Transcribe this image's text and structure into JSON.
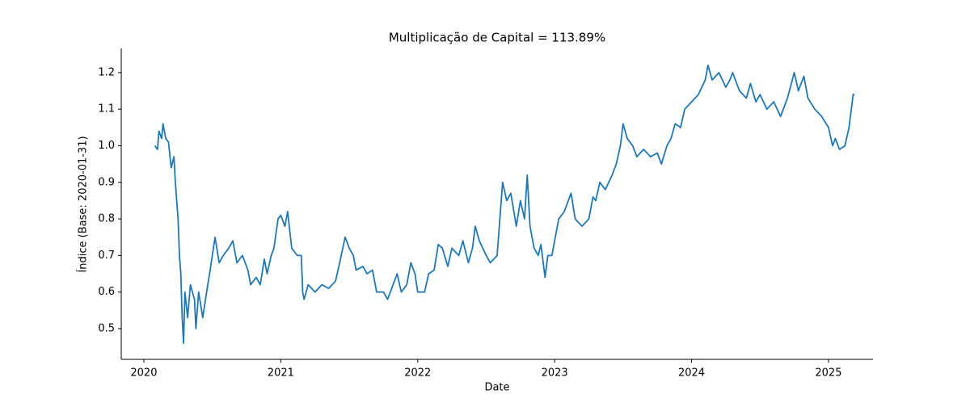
{
  "chart_data": {
    "type": "line",
    "title": "Multiplicação de Capital = 113.89%",
    "x_label": "Date",
    "y_label": "Índice (Base: 2020-01-31)",
    "x": [
      2020.08,
      2020.1,
      2020.11,
      2020.13,
      2020.14,
      2020.16,
      2020.18,
      2020.2,
      2020.22,
      2020.23,
      2020.25,
      2020.26,
      2020.27,
      2020.28,
      2020.29,
      2020.3,
      2020.32,
      2020.34,
      2020.37,
      2020.38,
      2020.4,
      2020.43,
      2020.45,
      2020.48,
      2020.5,
      2020.52,
      2020.55,
      2020.58,
      2020.62,
      2020.65,
      2020.68,
      2020.72,
      2020.76,
      2020.78,
      2020.82,
      2020.85,
      2020.88,
      2020.9,
      2020.93,
      2020.95,
      2020.98,
      2021.0,
      2021.03,
      2021.05,
      2021.08,
      2021.12,
      2021.15,
      2021.16,
      2021.17,
      2021.2,
      2021.25,
      2021.3,
      2021.35,
      2021.4,
      2021.43,
      2021.47,
      2021.5,
      2021.53,
      2021.55,
      2021.6,
      2021.63,
      2021.67,
      2021.7,
      2021.75,
      2021.78,
      2021.82,
      2021.85,
      2021.88,
      2021.92,
      2021.95,
      2021.98,
      2022.0,
      2022.05,
      2022.08,
      2022.12,
      2022.15,
      2022.18,
      2022.22,
      2022.25,
      2022.3,
      2022.33,
      2022.37,
      2022.4,
      2022.42,
      2022.45,
      2022.5,
      2022.53,
      2022.58,
      2022.6,
      2022.62,
      2022.65,
      2022.68,
      2022.72,
      2022.75,
      2022.78,
      2022.8,
      2022.82,
      2022.85,
      2022.88,
      2022.9,
      2022.93,
      2022.95,
      2022.98,
      2023.03,
      2023.07,
      2023.12,
      2023.15,
      2023.2,
      2023.25,
      2023.28,
      2023.3,
      2023.33,
      2023.37,
      2023.42,
      2023.45,
      2023.48,
      2023.5,
      2023.53,
      2023.57,
      2023.6,
      2023.65,
      2023.7,
      2023.75,
      2023.78,
      2023.82,
      2023.85,
      2023.88,
      2023.92,
      2023.95,
      2024.0,
      2024.05,
      2024.1,
      2024.12,
      2024.15,
      2024.2,
      2024.25,
      2024.28,
      2024.3,
      2024.35,
      2024.4,
      2024.43,
      2024.47,
      2024.5,
      2024.55,
      2024.6,
      2024.65,
      2024.7,
      2024.75,
      2024.78,
      2024.82,
      2024.85,
      2024.9,
      2024.95,
      2025.0,
      2025.03,
      2025.05,
      2025.08,
      2025.12,
      2025.15,
      2025.18,
      2025.19
    ],
    "series": [
      {
        "color": "#1f77b4",
        "values": [
          1.0,
          0.99,
          1.04,
          1.02,
          1.06,
          1.02,
          1.01,
          0.94,
          0.97,
          0.9,
          0.8,
          0.7,
          0.65,
          0.53,
          0.46,
          0.6,
          0.53,
          0.62,
          0.58,
          0.5,
          0.6,
          0.53,
          0.58,
          0.65,
          0.7,
          0.75,
          0.68,
          0.7,
          0.72,
          0.74,
          0.68,
          0.7,
          0.66,
          0.62,
          0.64,
          0.62,
          0.69,
          0.65,
          0.7,
          0.72,
          0.8,
          0.81,
          0.78,
          0.82,
          0.72,
          0.7,
          0.7,
          0.6,
          0.58,
          0.62,
          0.6,
          0.62,
          0.61,
          0.63,
          0.68,
          0.75,
          0.72,
          0.7,
          0.66,
          0.67,
          0.65,
          0.66,
          0.6,
          0.6,
          0.58,
          0.62,
          0.65,
          0.6,
          0.62,
          0.68,
          0.65,
          0.6,
          0.6,
          0.65,
          0.66,
          0.73,
          0.72,
          0.67,
          0.72,
          0.7,
          0.74,
          0.68,
          0.72,
          0.78,
          0.74,
          0.7,
          0.68,
          0.7,
          0.8,
          0.9,
          0.85,
          0.87,
          0.78,
          0.85,
          0.8,
          0.92,
          0.78,
          0.72,
          0.7,
          0.73,
          0.64,
          0.7,
          0.7,
          0.8,
          0.82,
          0.87,
          0.8,
          0.78,
          0.8,
          0.86,
          0.85,
          0.9,
          0.88,
          0.92,
          0.95,
          1.0,
          1.06,
          1.02,
          1.0,
          0.97,
          0.99,
          0.97,
          0.98,
          0.95,
          1.0,
          1.02,
          1.06,
          1.05,
          1.1,
          1.12,
          1.14,
          1.18,
          1.22,
          1.18,
          1.2,
          1.16,
          1.18,
          1.2,
          1.15,
          1.13,
          1.17,
          1.12,
          1.14,
          1.1,
          1.12,
          1.08,
          1.13,
          1.2,
          1.15,
          1.19,
          1.13,
          1.1,
          1.08,
          1.05,
          1.0,
          1.02,
          0.99,
          1.0,
          1.05,
          1.14,
          1.14
        ]
      }
    ],
    "xlim": [
      2019.835,
      2025.325
    ],
    "xticks": [
      2020,
      2021,
      2022,
      2023,
      2024,
      2025
    ],
    "ylim": [
      0.416,
      1.266
    ],
    "yticks": [
      0.5,
      0.6,
      0.7,
      0.8,
      0.9,
      {
        "value": 1,
        "label": "1.0"
      },
      1.1,
      1.2
    ]
  }
}
